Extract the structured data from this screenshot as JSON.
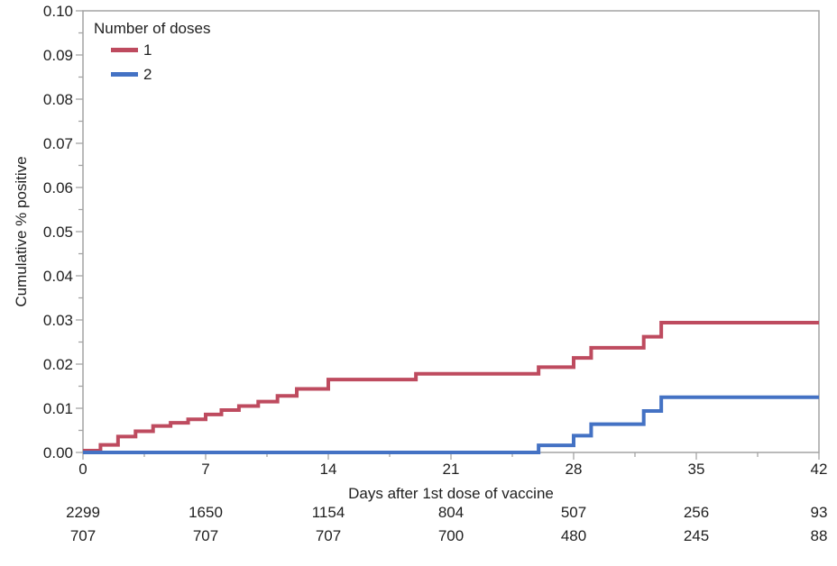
{
  "figure": {
    "background": "#ffffff",
    "frame_color": "#a3a3a3",
    "text_color": "#1f1f1f"
  },
  "chart_data": {
    "type": "line",
    "subtype": "step-survival",
    "title": "",
    "xlabel": "Days after 1st dose of vaccine",
    "ylabel": "Cumulative % positive",
    "xlim": [
      0,
      42
    ],
    "ylim": [
      0,
      0.1
    ],
    "grid": false,
    "x_major_ticks": [
      0,
      7,
      14,
      21,
      28,
      35,
      42
    ],
    "x_tick_labels": [
      "0",
      "7",
      "14",
      "21",
      "28",
      "35",
      "42"
    ],
    "x_minor_ticks": [
      3.5,
      10.5,
      17.5,
      24.5,
      31.5,
      38.5
    ],
    "y_major_ticks": [
      0,
      0.01,
      0.02,
      0.03,
      0.04,
      0.05,
      0.06,
      0.07,
      0.08,
      0.09,
      0.1
    ],
    "y_tick_labels": [
      "0.00",
      "0.01",
      "0.02",
      "0.03",
      "0.04",
      "0.05",
      "0.06",
      "0.07",
      "0.08",
      "0.09",
      "0.10"
    ],
    "y_minor_ticks": [
      0.005,
      0.015,
      0.025,
      0.035,
      0.045,
      0.055,
      0.065,
      0.075,
      0.085,
      0.095
    ],
    "legend": {
      "title": "Number of doses",
      "position": "top-left",
      "entries": [
        {
          "label": "1",
          "color": "#be4b5f"
        },
        {
          "label": "2",
          "color": "#4472c4"
        }
      ]
    },
    "series": [
      {
        "name": "1",
        "color": "#be4b5f",
        "points": [
          [
            0,
            0.0004
          ],
          [
            1,
            0.0017
          ],
          [
            2,
            0.0036
          ],
          [
            3,
            0.0048
          ],
          [
            4,
            0.006
          ],
          [
            5,
            0.0067
          ],
          [
            6,
            0.0075
          ],
          [
            7,
            0.0086
          ],
          [
            7.9,
            0.0096
          ],
          [
            8.9,
            0.0105
          ],
          [
            10,
            0.0115
          ],
          [
            11.1,
            0.0128
          ],
          [
            12.2,
            0.0144
          ],
          [
            14,
            0.0165
          ],
          [
            19,
            0.0178
          ],
          [
            26,
            0.0193
          ],
          [
            28,
            0.0214
          ],
          [
            29,
            0.0237
          ],
          [
            32,
            0.0262
          ],
          [
            33,
            0.0294
          ],
          [
            42,
            0.0294
          ]
        ]
      },
      {
        "name": "2",
        "color": "#4472c4",
        "points": [
          [
            0,
            0.0
          ],
          [
            26,
            0.0016
          ],
          [
            28,
            0.0038
          ],
          [
            29,
            0.0064
          ],
          [
            32,
            0.0094
          ],
          [
            33,
            0.0125
          ],
          [
            42,
            0.0125
          ]
        ]
      }
    ],
    "risk_table": {
      "tick_days": [
        0,
        7,
        14,
        21,
        28,
        35,
        42
      ],
      "rows": [
        {
          "series": "1",
          "color": "#cb2d36",
          "values": [
            "2299",
            "1650",
            "1154",
            "804",
            "507",
            "256",
            "93"
          ]
        },
        {
          "series": "2",
          "color": "#3e51b5",
          "values": [
            "707",
            "707",
            "707",
            "700",
            "480",
            "245",
            "88"
          ]
        }
      ]
    }
  }
}
